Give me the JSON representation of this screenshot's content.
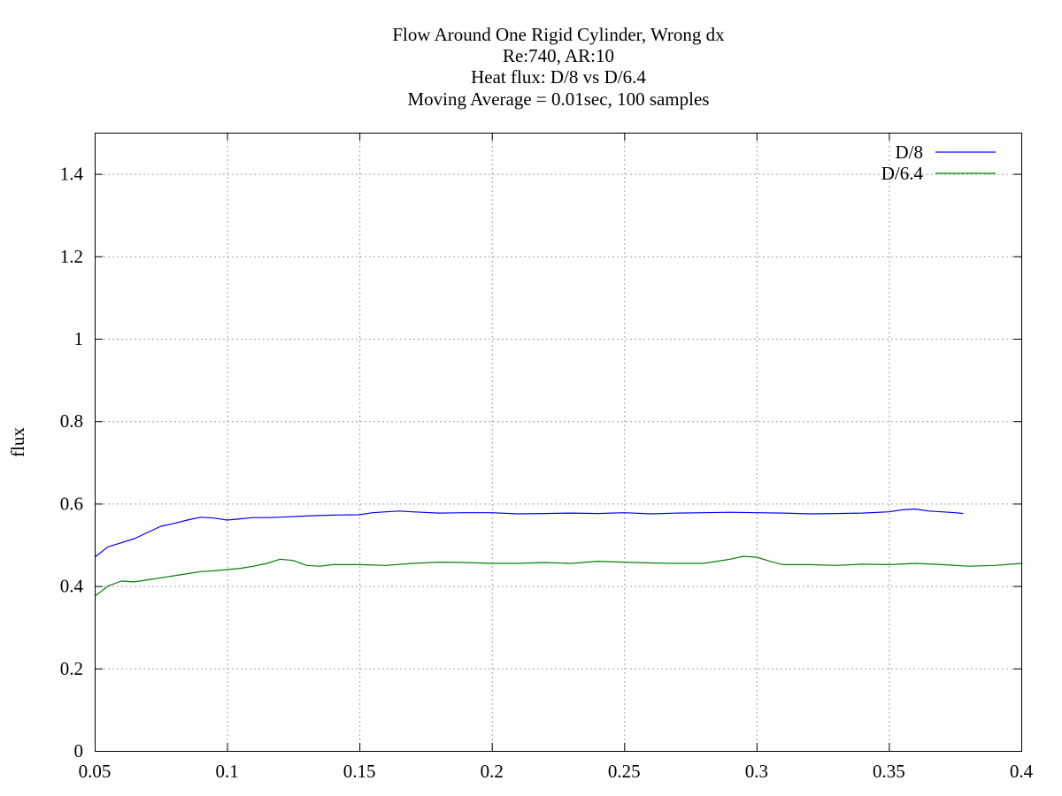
{
  "chart_data": {
    "type": "line",
    "title_lines": [
      "Flow Around One Rigid Cylinder, Wrong dx",
      "Re:740, AR:10",
      "Heat flux: D/8 vs D/6.4",
      "Moving Average = 0.01sec, 100 samples"
    ],
    "xlabel": "",
    "ylabel": "flux",
    "xlim": [
      0.05,
      0.4
    ],
    "ylim": [
      0,
      1.5
    ],
    "x_ticks": [
      0.05,
      0.1,
      0.15,
      0.2,
      0.25,
      0.3,
      0.35,
      0.4
    ],
    "x_tick_labels": [
      "0.05",
      "0.1",
      "0.15",
      "0.2",
      "0.25",
      "0.3",
      "0.35",
      "0.4"
    ],
    "y_ticks": [
      0,
      0.2,
      0.4,
      0.6,
      0.8,
      1,
      1.2,
      1.4
    ],
    "y_tick_labels": [
      "0",
      "0.2",
      "0.4",
      "0.6",
      "0.8",
      "1",
      "1.2",
      "1.4"
    ],
    "grid": true,
    "legend_position": "top-right",
    "series": [
      {
        "name": "D/8",
        "color": "#0000ff",
        "x": [
          0.05,
          0.055,
          0.06,
          0.065,
          0.07,
          0.075,
          0.08,
          0.085,
          0.09,
          0.095,
          0.1,
          0.105,
          0.11,
          0.115,
          0.12,
          0.13,
          0.14,
          0.15,
          0.155,
          0.16,
          0.165,
          0.17,
          0.18,
          0.19,
          0.2,
          0.21,
          0.22,
          0.23,
          0.24,
          0.25,
          0.26,
          0.27,
          0.28,
          0.29,
          0.3,
          0.31,
          0.32,
          0.33,
          0.34,
          0.35,
          0.355,
          0.36,
          0.365,
          0.37,
          0.375,
          0.378
        ],
        "y": [
          0.47,
          0.495,
          0.505,
          0.515,
          0.53,
          0.545,
          0.552,
          0.56,
          0.567,
          0.565,
          0.56,
          0.563,
          0.566,
          0.566,
          0.567,
          0.57,
          0.572,
          0.573,
          0.578,
          0.58,
          0.582,
          0.58,
          0.577,
          0.578,
          0.578,
          0.575,
          0.576,
          0.577,
          0.576,
          0.578,
          0.575,
          0.577,
          0.578,
          0.579,
          0.578,
          0.577,
          0.575,
          0.576,
          0.577,
          0.58,
          0.585,
          0.587,
          0.582,
          0.58,
          0.578,
          0.576
        ]
      },
      {
        "name": "D/6.4",
        "color": "#008000",
        "x": [
          0.05,
          0.055,
          0.06,
          0.065,
          0.07,
          0.075,
          0.08,
          0.085,
          0.09,
          0.095,
          0.1,
          0.105,
          0.11,
          0.115,
          0.12,
          0.125,
          0.13,
          0.135,
          0.14,
          0.15,
          0.16,
          0.17,
          0.18,
          0.19,
          0.2,
          0.21,
          0.22,
          0.23,
          0.24,
          0.25,
          0.26,
          0.27,
          0.28,
          0.285,
          0.29,
          0.295,
          0.3,
          0.305,
          0.31,
          0.32,
          0.33,
          0.34,
          0.35,
          0.36,
          0.37,
          0.38,
          0.39,
          0.4
        ],
        "y": [
          0.375,
          0.4,
          0.412,
          0.41,
          0.415,
          0.42,
          0.425,
          0.43,
          0.435,
          0.437,
          0.44,
          0.443,
          0.448,
          0.455,
          0.465,
          0.462,
          0.45,
          0.448,
          0.452,
          0.452,
          0.45,
          0.455,
          0.458,
          0.457,
          0.455,
          0.455,
          0.457,
          0.455,
          0.46,
          0.458,
          0.456,
          0.455,
          0.455,
          0.46,
          0.465,
          0.472,
          0.47,
          0.46,
          0.452,
          0.452,
          0.45,
          0.453,
          0.452,
          0.455,
          0.452,
          0.448,
          0.45,
          0.455
        ]
      }
    ]
  }
}
